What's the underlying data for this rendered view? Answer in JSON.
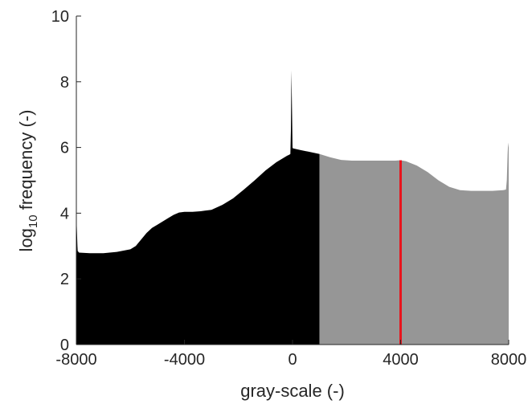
{
  "chart_data": {
    "type": "area",
    "title": "",
    "xlabel": "gray-scale (-)",
    "ylabel": {
      "prefix": "log",
      "subscript": "10",
      "suffix": " frequency (-)"
    },
    "xlim": [
      -8000,
      8000
    ],
    "ylim": [
      0,
      10
    ],
    "xticks": [
      -8000,
      -4000,
      0,
      4000,
      8000
    ],
    "xtick_labels": [
      "-8000",
      "-4000",
      "0",
      "4000",
      "8000"
    ],
    "yticks": [
      0,
      2,
      4,
      6,
      8,
      10
    ],
    "ytick_labels": [
      "0",
      "2",
      "4",
      "6",
      "8",
      "10"
    ],
    "grid": false,
    "threshold_x": 1000,
    "marker_x": 4000,
    "colors": {
      "below_threshold": "#000000",
      "above_threshold": "#969696",
      "marker": "#e8141c",
      "axis": "#262626"
    },
    "series": [
      {
        "x": [
          -8000,
          -7980,
          -7960,
          -7950,
          -7900,
          -7500,
          -7000,
          -6500,
          -6000,
          -5800,
          -5600,
          -5400,
          -5200,
          -5000,
          -4800,
          -4600,
          -4400,
          -4200,
          -4000,
          -3700,
          -3400,
          -3000,
          -2600,
          -2200,
          -1800,
          -1400,
          -1000,
          -600,
          -200,
          -120,
          -80,
          -60,
          -40,
          -20,
          0,
          20,
          40,
          300,
          600,
          1000,
          1400,
          1800,
          2200,
          2600,
          3000,
          3400,
          3800,
          4000,
          4200,
          4600,
          5000,
          5400,
          5800,
          6200,
          6600,
          7000,
          7400,
          7800,
          7900,
          7930,
          7960,
          7980,
          8000
        ],
        "y": [
          4.0,
          3.5,
          3.0,
          2.85,
          2.8,
          2.78,
          2.78,
          2.82,
          2.9,
          3.0,
          3.2,
          3.4,
          3.55,
          3.65,
          3.75,
          3.85,
          3.95,
          4.02,
          4.04,
          4.04,
          4.06,
          4.1,
          4.25,
          4.45,
          4.72,
          5.0,
          5.3,
          5.55,
          5.75,
          5.78,
          5.8,
          6.5,
          8.35,
          7.2,
          6.0,
          5.97,
          5.97,
          5.92,
          5.87,
          5.8,
          5.7,
          5.62,
          5.6,
          5.6,
          5.6,
          5.6,
          5.6,
          5.61,
          5.58,
          5.45,
          5.25,
          5.0,
          4.8,
          4.7,
          4.68,
          4.68,
          4.68,
          4.7,
          4.72,
          5.0,
          5.8,
          6.15,
          6.0
        ]
      }
    ]
  }
}
